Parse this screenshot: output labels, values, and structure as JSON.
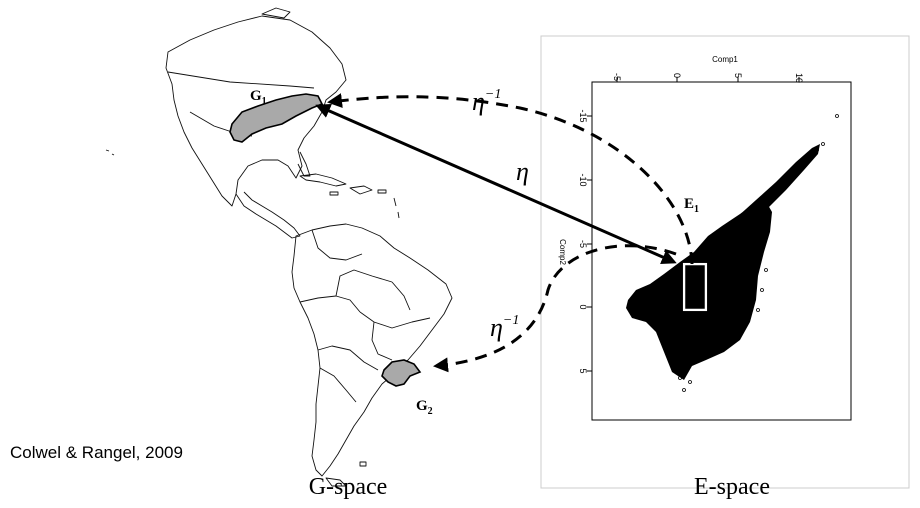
{
  "labels": {
    "g1_main": "G",
    "g1_sub": "1",
    "g2_main": "G",
    "g2_sub": "2",
    "e1_main": "E",
    "e1_sub": "1",
    "eta_forward": "η",
    "eta_inverse_top": "η",
    "eta_inverse_top_sup": "−1",
    "eta_inverse_bottom": "η",
    "eta_inverse_bottom_sup": "−1",
    "g_space": "G-space",
    "e_space": "E-space",
    "citation": "Colwel & Rangel, 2009"
  },
  "plot": {
    "x_axis_title": "Comp1",
    "y_axis_title": "Comp2",
    "x_ticks": [
      "-5",
      "0",
      "5",
      "10"
    ],
    "y_ticks": [
      "-15",
      "-10",
      "-5",
      "0",
      "5"
    ]
  },
  "colors": {
    "region_fill": "#a9a9a9",
    "ink": "#000000",
    "panel_border": "#cccccc"
  }
}
